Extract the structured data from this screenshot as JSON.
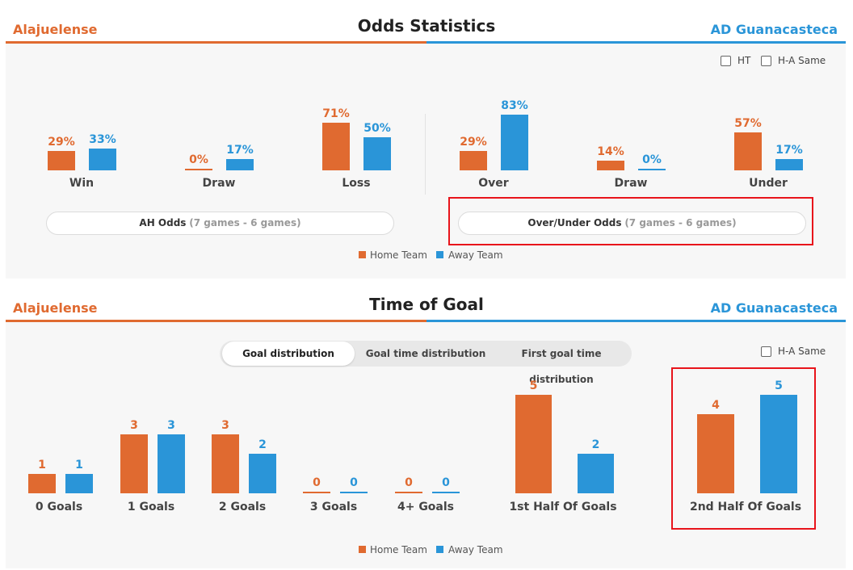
{
  "odds": {
    "home_team": "Alajuelense",
    "away_team": "AD Guanacasteca",
    "title": "Odds Statistics",
    "options": {
      "ht": "HT",
      "ha_same": "H-A Same"
    },
    "ah_groups": [
      {
        "label": "Win",
        "home": "29%",
        "away": "33%",
        "home_val": 29,
        "away_val": 33
      },
      {
        "label": "Draw",
        "home": "0%",
        "away": "17%",
        "home_val": 0,
        "away_val": 17
      },
      {
        "label": "Loss",
        "home": "71%",
        "away": "50%",
        "home_val": 71,
        "away_val": 50
      }
    ],
    "ou_groups": [
      {
        "label": "Over",
        "home": "29%",
        "away": "83%",
        "home_val": 29,
        "away_val": 83
      },
      {
        "label": "Draw",
        "home": "14%",
        "away": "0%",
        "home_val": 14,
        "away_val": 0
      },
      {
        "label": "Under",
        "home": "57%",
        "away": "17%",
        "home_val": 57,
        "away_val": 17
      }
    ],
    "ah_button": {
      "label": "AH Odds",
      "games": "(7 games - 6 games)"
    },
    "ou_button": {
      "label": "Over/Under Odds",
      "games": "(7 games - 6 games)"
    },
    "legend": {
      "home": "Home Team",
      "away": "Away Team"
    }
  },
  "goals": {
    "home_team": "Alajuelense",
    "away_team": "AD Guanacasteca",
    "title": "Time of Goal",
    "tabs": [
      "Goal distribution",
      "Goal time distribution",
      "First goal time distribution"
    ],
    "active_tab": "Goal distribution",
    "ha_same": "H-A Same",
    "groups": [
      {
        "label": "0 Goals",
        "home": 1,
        "away": 1
      },
      {
        "label": "1 Goals",
        "home": 3,
        "away": 3
      },
      {
        "label": "2 Goals",
        "home": 3,
        "away": 2
      },
      {
        "label": "3 Goals",
        "home": 0,
        "away": 0
      },
      {
        "label": "4+ Goals",
        "home": 0,
        "away": 0
      },
      {
        "label": "1st Half Of Goals",
        "home": 5,
        "away": 2
      },
      {
        "label": "2nd Half Of Goals",
        "home": 4,
        "away": 5
      }
    ],
    "legend": {
      "home": "Home Team",
      "away": "Away Team"
    }
  },
  "colors": {
    "home": "#e06a30",
    "away": "#2a95d8",
    "highlight": "#e8141b"
  }
}
